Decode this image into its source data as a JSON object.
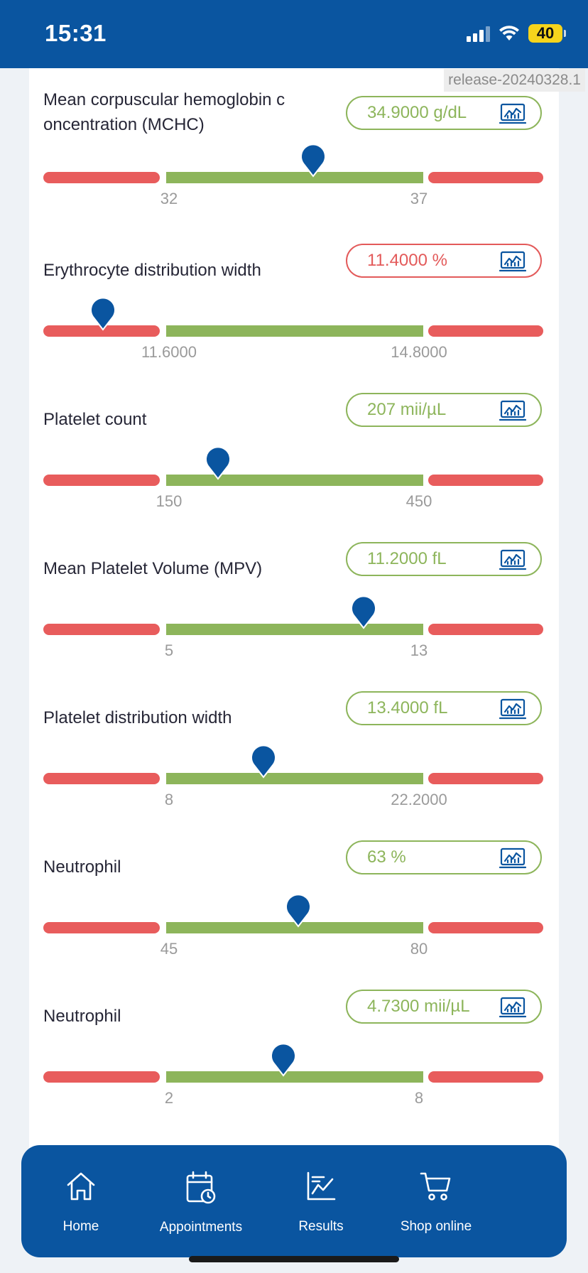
{
  "status_bar": {
    "time": "15:31",
    "battery": "40"
  },
  "release_tag": "release-20240328.1",
  "metrics": [
    {
      "label": "Mean corpuscular hemoglobin c oncentration (MCHC)",
      "value": "34.9000 g/dL",
      "status": "normal",
      "low": "32",
      "high": "37",
      "marker_fraction": 0.54
    },
    {
      "label": "Erythrocyte distribution width",
      "value": "11.4000 %",
      "status": "abnormal",
      "low": "11.6000",
      "high": "14.8000",
      "marker_fraction": 0.12
    },
    {
      "label": "Platelet count",
      "value": "207 mii/µL",
      "status": "normal",
      "low": "150",
      "high": "450",
      "marker_fraction": 0.35
    },
    {
      "label": "Mean Platelet Volume (MPV)",
      "value": "11.2000 fL",
      "status": "normal",
      "low": "5",
      "high": "13",
      "marker_fraction": 0.64
    },
    {
      "label": "Platelet distribution width",
      "value": "13.4000 fL",
      "status": "normal",
      "low": "8",
      "high": "22.2000",
      "marker_fraction": 0.44
    },
    {
      "label": "Neutrophil",
      "value": "63 %",
      "status": "normal",
      "low": "45",
      "high": "80",
      "marker_fraction": 0.51
    },
    {
      "label": "Neutrophil",
      "value": "4.7300 mii/µL",
      "status": "normal",
      "low": "2",
      "high": "8",
      "marker_fraction": 0.48
    }
  ],
  "nav": {
    "home": "Home",
    "appointments": "Appointments",
    "results": "Results",
    "shop": "Shop online"
  },
  "colors": {
    "brand": "#0a55a0",
    "normal": "#8db55b",
    "abnormal": "#e35a5a"
  }
}
